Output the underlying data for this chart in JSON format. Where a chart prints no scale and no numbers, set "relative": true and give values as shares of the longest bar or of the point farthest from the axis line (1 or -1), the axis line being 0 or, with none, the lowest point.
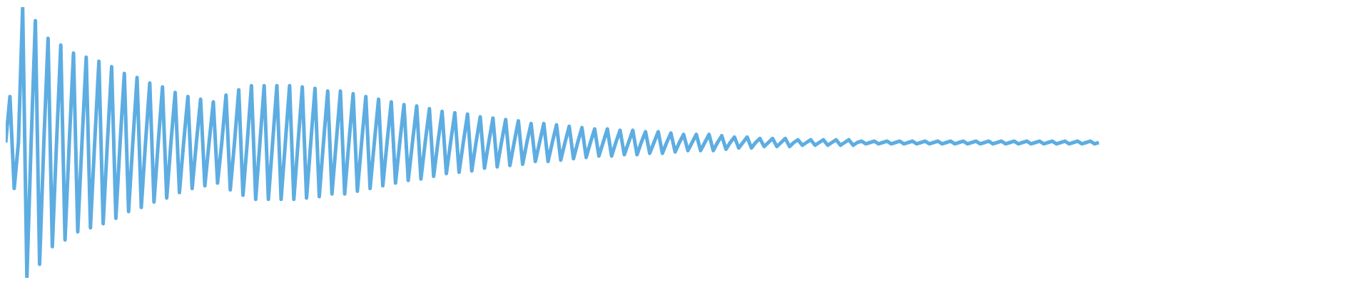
{
  "chart_data": {
    "type": "line",
    "relative": true,
    "categories": [
      null,
      null,
      null,
      null,
      null,
      null,
      null,
      null,
      null,
      null,
      null,
      null,
      null,
      null,
      null,
      null,
      null,
      null,
      null,
      null,
      null,
      null,
      null,
      null,
      null,
      null,
      null,
      null,
      null,
      null,
      null,
      null,
      null,
      null,
      null,
      null,
      null,
      null,
      null,
      null,
      null,
      null,
      null,
      null,
      null,
      null,
      null,
      null,
      null,
      null,
      null,
      null,
      null,
      null,
      null,
      null,
      null,
      null,
      null,
      null,
      null,
      null,
      null,
      null,
      null,
      null,
      null,
      null,
      null,
      null,
      null,
      null,
      null,
      null,
      null,
      null,
      null,
      null,
      null,
      null,
      null,
      null,
      null,
      null,
      null,
      null,
      null,
      null,
      null,
      null,
      null,
      null,
      null,
      null,
      null,
      null,
      null,
      null,
      null,
      null,
      null,
      null,
      null,
      null,
      null,
      null,
      null,
      null,
      null,
      null,
      null,
      null,
      null,
      null,
      null,
      null,
      null,
      null,
      null,
      null,
      null,
      null,
      null,
      null,
      null,
      null,
      null,
      null,
      null,
      null,
      null,
      null,
      null,
      null,
      null,
      null,
      null,
      null,
      null,
      null,
      null,
      null,
      null,
      null,
      null,
      null,
      null,
      null,
      null,
      null,
      null,
      null,
      null,
      null,
      null,
      null,
      null,
      null,
      null,
      null,
      null,
      null,
      null,
      null,
      null,
      null,
      null,
      null,
      null,
      null,
      null,
      null,
      null,
      null,
      null,
      null,
      null,
      null,
      null,
      null,
      null,
      null,
      null,
      null,
      null,
      null,
      null,
      null,
      null,
      null,
      null,
      null,
      null,
      null,
      null,
      null,
      null,
      null,
      null,
      null,
      null,
      null,
      null,
      null,
      null,
      null,
      null,
      null,
      null,
      null,
      null,
      null,
      null,
      null,
      null,
      null,
      null,
      null,
      null,
      null,
      null,
      null,
      null,
      null,
      null,
      null,
      null,
      null,
      null,
      null,
      null,
      null,
      null,
      null,
      null,
      null,
      null,
      null,
      null,
      null,
      null,
      null,
      null,
      null,
      null,
      null,
      null,
      null,
      null,
      null,
      null,
      null,
      null,
      null,
      null,
      null,
      null,
      null,
      null
    ],
    "series": [
      {
        "color": "#5dade2",
        "values": [
          0.5,
          0.67,
          0.33,
          0.5,
          1,
          0,
          0.5,
          0.95,
          0.05,
          0.5,
          0.885,
          0.115,
          0.5,
          0.86,
          0.14,
          0.5,
          0.83,
          0.17,
          0.5,
          0.815,
          0.185,
          0.5,
          0.8,
          0.2,
          0.5,
          0.78,
          0.22,
          0.5,
          0.755,
          0.245,
          0.5,
          0.74,
          0.26,
          0.5,
          0.72,
          0.28,
          0.5,
          0.705,
          0.295,
          0.5,
          0.685,
          0.315,
          0.5,
          0.67,
          0.33,
          0.5,
          0.66,
          0.34,
          0.5,
          0.65,
          0.35,
          0.5,
          0.675,
          0.325,
          0.5,
          0.695,
          0.305,
          0.5,
          0.71,
          0.29,
          0.5,
          0.71,
          0.29,
          0.5,
          0.71,
          0.29,
          0.5,
          0.71,
          0.29,
          0.5,
          0.705,
          0.295,
          0.5,
          0.7,
          0.3,
          0.5,
          0.69,
          0.31,
          0.5,
          0.69,
          0.31,
          0.5,
          0.68,
          0.32,
          0.5,
          0.67,
          0.33,
          0.5,
          0.66,
          0.34,
          0.5,
          0.65,
          0.35,
          0.5,
          0.64,
          0.36,
          0.5,
          0.635,
          0.365,
          0.5,
          0.625,
          0.375,
          0.5,
          0.615,
          0.385,
          0.5,
          0.61,
          0.39,
          0.5,
          0.605,
          0.395,
          0.5,
          0.595,
          0.405,
          0.5,
          0.59,
          0.41,
          0.5,
          0.585,
          0.415,
          0.5,
          0.58,
          0.42,
          0.5,
          0.57,
          0.43,
          0.5,
          0.57,
          0.43,
          0.5,
          0.565,
          0.435,
          0.5,
          0.56,
          0.44,
          0.5,
          0.555,
          0.445,
          0.5,
          0.55,
          0.45,
          0.5,
          0.55,
          0.45,
          0.5,
          0.545,
          0.455,
          0.5,
          0.545,
          0.455,
          0.5,
          0.54,
          0.46,
          0.5,
          0.54,
          0.46,
          0.5,
          0.535,
          0.465,
          0.5,
          0.53,
          0.47,
          0.5,
          0.53,
          0.47,
          0.5,
          0.53,
          0.47,
          0.5,
          0.525,
          0.475,
          0.5,
          0.52,
          0.48,
          0.5,
          0.52,
          0.48,
          0.5,
          0.515,
          0.485,
          0.5,
          0.515,
          0.485,
          0.5,
          0.515,
          0.485,
          0.5,
          0.51,
          0.49,
          0.5,
          0.51,
          0.49,
          0.5,
          0.51,
          0.49,
          0.5,
          0.51,
          0.49,
          0.5,
          0.51,
          0.49,
          0.5,
          0.505,
          0.495,
          0.5,
          0.505,
          0.495,
          0.5,
          0.505,
          0.495,
          0.5,
          0.505,
          0.495,
          0.5,
          0.505,
          0.495,
          0.5,
          0.505,
          0.495,
          0.5,
          0.505,
          0.495,
          0.5,
          0.505,
          0.495,
          0.5,
          0.505,
          0.495,
          0.5,
          0.505,
          0.495,
          0.5,
          0.505,
          0.495,
          0.5,
          0.505,
          0.495,
          0.5,
          0.505,
          0.495,
          0.5,
          0.505,
          0.495,
          0.5,
          0.505,
          0.495,
          0.5,
          0.505,
          0.495,
          0.5,
          0.505,
          0.495,
          0.5,
          0.505,
          0.495,
          0.5,
          0.505,
          0.495,
          0.5
        ]
      }
    ]
  }
}
